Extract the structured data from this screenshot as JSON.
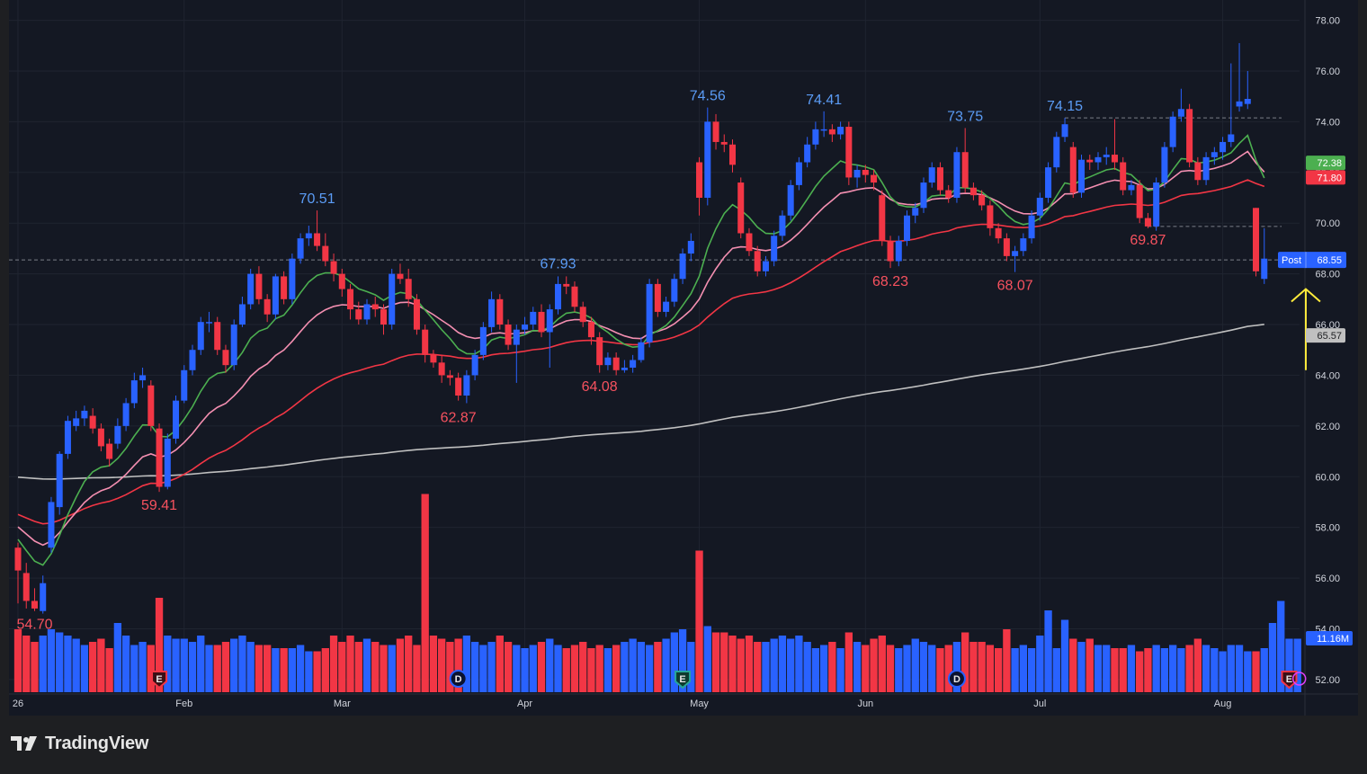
{
  "brand": {
    "name": "TradingView",
    "icon": "tradingview-logo-icon"
  },
  "colors": {
    "background": "#141823",
    "frame": "#1e1f22",
    "up": "#2962ff",
    "down": "#f23645",
    "up_label": "#5b9cf6",
    "down_label": "#f7525f",
    "ema_fast": "#4caf50",
    "ema_mid": "#f48fb1",
    "ema_slow": "#f23645",
    "sma_long": "#c0c0c0",
    "arrow": "#ffeb3b",
    "axis_text": "#d1d4dc"
  },
  "chart_data": {
    "type": "candlestick",
    "ylim": [
      51.5,
      78.8
    ],
    "y_ticks": [
      "78.00",
      "76.00",
      "74.00",
      "72.00",
      "70.00",
      "68.00",
      "66.00",
      "64.00",
      "62.00",
      "60.00",
      "58.00",
      "56.00",
      "54.00",
      "52.00"
    ],
    "x_ticks": [
      {
        "label": "26",
        "index": 0
      },
      {
        "label": "Feb",
        "index": 20
      },
      {
        "label": "Mar",
        "index": 39
      },
      {
        "label": "Apr",
        "index": 61
      },
      {
        "label": "May",
        "index": 82
      },
      {
        "label": "Jun",
        "index": 102
      },
      {
        "label": "Jul",
        "index": 123
      },
      {
        "label": "Aug",
        "index": 145
      }
    ],
    "candles": [
      [
        57.2,
        56.3,
        57.4,
        55.0
      ],
      [
        56.2,
        55.1,
        56.6,
        54.8
      ],
      [
        55.1,
        54.8,
        55.6,
        54.7
      ],
      [
        54.7,
        55.8,
        56.1,
        54.6
      ],
      [
        57.2,
        59.0,
        59.2,
        57.0
      ],
      [
        58.8,
        60.9,
        61.0,
        58.5
      ],
      [
        60.9,
        62.2,
        62.4,
        60.7
      ],
      [
        62.0,
        62.3,
        62.6,
        61.8
      ],
      [
        62.3,
        62.6,
        62.8,
        62.0
      ],
      [
        62.4,
        61.9,
        62.7,
        61.7
      ],
      [
        61.9,
        61.2,
        62.1,
        61.0
      ],
      [
        61.3,
        60.7,
        61.5,
        60.4
      ],
      [
        61.3,
        62.0,
        62.3,
        61.1
      ],
      [
        62.0,
        62.9,
        63.1,
        61.8
      ],
      [
        62.9,
        63.8,
        64.1,
        62.7
      ],
      [
        63.8,
        64.0,
        64.3,
        63.5
      ],
      [
        63.6,
        62.0,
        63.8,
        61.8
      ],
      [
        61.9,
        59.6,
        62.1,
        59.4
      ],
      [
        59.6,
        61.5,
        61.7,
        59.5
      ],
      [
        61.5,
        63.0,
        63.2,
        61.3
      ],
      [
        63.0,
        64.2,
        64.4,
        62.9
      ],
      [
        64.2,
        65.0,
        65.2,
        64.0
      ],
      [
        65.0,
        66.1,
        66.3,
        64.8
      ],
      [
        66.1,
        66.1,
        66.5,
        65.7
      ],
      [
        66.1,
        65.0,
        66.3,
        64.8
      ],
      [
        65.0,
        64.4,
        65.2,
        64.1
      ],
      [
        64.4,
        66.0,
        66.2,
        64.2
      ],
      [
        66.0,
        66.8,
        67.1,
        65.9
      ],
      [
        66.8,
        68.0,
        68.2,
        66.6
      ],
      [
        68.0,
        67.0,
        68.3,
        66.8
      ],
      [
        67.0,
        66.4,
        67.2,
        66.1
      ],
      [
        66.4,
        67.9,
        68.0,
        66.2
      ],
      [
        67.9,
        67.0,
        68.1,
        66.8
      ],
      [
        67.0,
        68.6,
        68.8,
        66.8
      ],
      [
        68.6,
        69.4,
        69.6,
        68.4
      ],
      [
        69.4,
        69.6,
        69.9,
        69.1
      ],
      [
        69.6,
        69.1,
        70.5,
        68.9
      ],
      [
        69.1,
        68.5,
        69.6,
        68.3
      ],
      [
        68.5,
        68.0,
        68.8,
        67.7
      ],
      [
        68.0,
        67.4,
        68.2,
        67.1
      ],
      [
        67.4,
        66.6,
        67.6,
        66.2
      ],
      [
        66.6,
        66.2,
        66.9,
        66.0
      ],
      [
        66.2,
        66.8,
        67.0,
        66.0
      ],
      [
        66.8,
        66.6,
        67.1,
        66.3
      ],
      [
        66.6,
        66.0,
        66.8,
        65.6
      ],
      [
        66.0,
        68.0,
        68.2,
        65.8
      ],
      [
        68.0,
        67.8,
        68.4,
        67.6
      ],
      [
        67.8,
        67.0,
        68.2,
        66.7
      ],
      [
        67.0,
        65.8,
        67.2,
        65.6
      ],
      [
        65.8,
        64.8,
        66.0,
        64.5
      ],
      [
        64.8,
        64.5,
        65.0,
        64.3
      ],
      [
        64.5,
        64.0,
        64.8,
        63.7
      ],
      [
        64.0,
        63.9,
        64.2,
        63.6
      ],
      [
        63.9,
        63.2,
        64.1,
        63.0
      ],
      [
        63.2,
        64.0,
        64.2,
        62.9
      ],
      [
        64.0,
        64.8,
        65.0,
        63.8
      ],
      [
        64.8,
        65.9,
        66.1,
        64.6
      ],
      [
        65.9,
        67.0,
        67.3,
        65.7
      ],
      [
        67.0,
        66.0,
        67.2,
        65.8
      ],
      [
        66.0,
        65.2,
        66.2,
        65.0
      ],
      [
        65.2,
        65.8,
        66.0,
        63.7
      ],
      [
        65.8,
        66.0,
        66.3,
        65.6
      ],
      [
        66.0,
        66.5,
        66.7,
        65.8
      ],
      [
        66.5,
        65.7,
        66.8,
        65.5
      ],
      [
        65.7,
        66.6,
        66.8,
        64.3
      ],
      [
        66.6,
        67.6,
        67.9,
        66.4
      ],
      [
        67.6,
        67.5,
        67.9,
        67.2
      ],
      [
        67.5,
        66.7,
        67.7,
        66.5
      ],
      [
        66.7,
        66.1,
        66.9,
        65.9
      ],
      [
        66.1,
        65.5,
        66.3,
        65.2
      ],
      [
        65.5,
        64.4,
        65.7,
        64.1
      ],
      [
        64.4,
        64.7,
        64.9,
        64.2
      ],
      [
        64.7,
        64.2,
        64.9,
        64.0
      ],
      [
        64.2,
        64.3,
        64.6,
        64.1
      ],
      [
        64.3,
        64.6,
        64.8,
        64.1
      ],
      [
        64.6,
        65.3,
        65.5,
        64.5
      ],
      [
        65.3,
        67.6,
        67.8,
        65.1
      ],
      [
        67.6,
        66.5,
        67.8,
        66.3
      ],
      [
        66.5,
        66.9,
        67.1,
        66.3
      ],
      [
        66.9,
        67.8,
        68.0,
        66.7
      ],
      [
        67.8,
        68.8,
        69.0,
        67.6
      ],
      [
        68.8,
        69.3,
        69.6,
        68.5
      ],
      [
        72.4,
        71.0,
        72.6,
        70.3
      ],
      [
        71.0,
        74.0,
        74.56,
        70.7
      ],
      [
        74.0,
        73.2,
        74.3,
        72.9
      ],
      [
        73.2,
        73.1,
        73.5,
        72.8
      ],
      [
        73.1,
        72.3,
        73.3,
        72.0
      ],
      [
        71.6,
        69.6,
        71.8,
        69.4
      ],
      [
        69.6,
        68.9,
        69.8,
        68.7
      ],
      [
        68.9,
        68.1,
        69.1,
        67.9
      ],
      [
        68.1,
        68.5,
        68.7,
        67.9
      ],
      [
        68.5,
        69.5,
        69.7,
        68.3
      ],
      [
        69.5,
        70.3,
        70.5,
        69.3
      ],
      [
        70.3,
        71.5,
        71.7,
        70.1
      ],
      [
        71.5,
        72.4,
        72.6,
        71.3
      ],
      [
        72.4,
        73.1,
        73.4,
        72.2
      ],
      [
        73.1,
        73.7,
        74.0,
        72.9
      ],
      [
        73.7,
        73.7,
        74.41,
        73.4
      ],
      [
        73.7,
        73.5,
        73.9,
        73.2
      ],
      [
        73.5,
        73.8,
        74.0,
        73.3
      ],
      [
        73.8,
        71.8,
        74.0,
        71.5
      ],
      [
        71.8,
        72.1,
        72.3,
        71.4
      ],
      [
        72.1,
        71.9,
        72.3,
        71.6
      ],
      [
        71.9,
        71.6,
        72.1,
        71.3
      ],
      [
        71.1,
        69.3,
        71.3,
        69.1
      ],
      [
        69.3,
        68.5,
        69.5,
        68.23
      ],
      [
        68.5,
        69.3,
        69.5,
        68.3
      ],
      [
        69.3,
        70.3,
        70.5,
        69.1
      ],
      [
        70.3,
        70.6,
        70.8,
        70.0
      ],
      [
        70.6,
        71.6,
        71.8,
        70.4
      ],
      [
        71.6,
        72.2,
        72.4,
        71.4
      ],
      [
        72.2,
        71.3,
        72.4,
        71.1
      ],
      [
        71.3,
        71.0,
        71.5,
        70.8
      ],
      [
        71.0,
        72.8,
        73.0,
        70.8
      ],
      [
        72.8,
        71.4,
        73.75,
        71.2
      ],
      [
        71.4,
        71.1,
        71.6,
        70.9
      ],
      [
        71.1,
        70.7,
        71.3,
        70.5
      ],
      [
        70.7,
        69.8,
        70.9,
        69.5
      ],
      [
        69.8,
        69.4,
        70.0,
        69.2
      ],
      [
        69.4,
        68.7,
        69.6,
        68.5
      ],
      [
        68.7,
        68.9,
        69.1,
        68.07
      ],
      [
        68.9,
        69.4,
        69.6,
        68.7
      ],
      [
        69.4,
        70.3,
        70.5,
        69.2
      ],
      [
        70.3,
        71.0,
        71.2,
        70.1
      ],
      [
        71.0,
        72.2,
        72.4,
        70.8
      ],
      [
        72.2,
        73.4,
        73.6,
        72.0
      ],
      [
        73.4,
        73.9,
        74.15,
        73.2
      ],
      [
        73.0,
        71.2,
        73.2,
        71.0
      ],
      [
        71.2,
        72.5,
        72.7,
        71.0
      ],
      [
        72.5,
        72.4,
        72.7,
        72.1
      ],
      [
        72.4,
        72.6,
        72.8,
        72.1
      ],
      [
        72.6,
        72.7,
        73.0,
        72.3
      ],
      [
        72.7,
        72.4,
        74.1,
        72.1
      ],
      [
        72.4,
        71.3,
        72.6,
        71.1
      ],
      [
        71.3,
        71.5,
        71.7,
        71.1
      ],
      [
        71.5,
        70.2,
        71.7,
        70.0
      ],
      [
        70.2,
        69.87,
        70.4,
        69.8
      ],
      [
        69.87,
        71.6,
        71.8,
        69.7
      ],
      [
        71.6,
        73.0,
        73.2,
        71.4
      ],
      [
        73.0,
        74.2,
        74.4,
        72.8
      ],
      [
        74.2,
        74.5,
        75.3,
        74.0
      ],
      [
        74.5,
        72.4,
        74.7,
        72.2
      ],
      [
        72.4,
        71.7,
        72.6,
        71.5
      ],
      [
        71.7,
        72.6,
        72.8,
        71.5
      ],
      [
        72.6,
        72.8,
        73.0,
        72.3
      ],
      [
        72.8,
        73.2,
        73.4,
        72.5
      ],
      [
        73.2,
        73.5,
        76.3,
        73.0
      ],
      [
        74.6,
        74.8,
        77.1,
        74.4
      ],
      [
        74.7,
        74.9,
        76.0,
        74.5
      ],
      [
        70.6,
        68.1,
        70.6,
        67.9
      ],
      [
        67.8,
        68.6,
        69.8,
        67.6
      ]
    ],
    "volume_max": 60,
    "volumes": [
      20,
      18,
      16,
      18,
      20,
      19,
      18,
      17,
      15,
      16,
      17,
      14,
      22,
      18,
      15,
      16,
      15,
      30,
      18,
      17,
      17,
      16,
      18,
      15,
      15,
      16,
      17,
      18,
      16,
      15,
      15,
      14,
      14,
      14,
      15,
      13,
      13,
      14,
      18,
      16,
      18,
      16,
      17,
      16,
      15,
      15,
      17,
      18,
      15,
      63,
      18,
      17,
      16,
      17,
      18,
      16,
      15,
      16,
      18,
      16,
      15,
      14,
      15,
      16,
      17,
      15,
      14,
      15,
      16,
      14,
      15,
      14,
      15,
      16,
      17,
      16,
      15,
      16,
      17,
      19,
      20,
      16,
      45,
      21,
      19,
      19,
      18,
      17,
      18,
      16,
      16,
      17,
      18,
      17,
      18,
      16,
      14,
      15,
      16,
      14,
      19,
      16,
      15,
      17,
      18,
      15,
      14,
      15,
      17,
      16,
      15,
      14,
      15,
      16,
      19,
      16,
      16,
      15,
      14,
      20,
      14,
      15,
      14,
      18,
      26,
      14,
      23,
      17,
      16,
      17,
      15,
      15,
      14,
      14,
      15,
      13,
      14,
      15,
      14,
      15,
      14,
      15,
      17,
      15,
      14,
      13,
      15,
      15,
      13,
      13,
      14,
      22,
      29,
      17,
      17
    ],
    "indicators": {
      "ema_fast": {
        "label": "72.38"
      },
      "ema_mid": {
        "label": "71.80"
      },
      "ema_slow": {
        "label": "71.80"
      },
      "sma_long": {
        "label": "65.57"
      }
    },
    "price_labels": [
      {
        "text": "54.70",
        "index": 2,
        "price": 54.7,
        "type": "low"
      },
      {
        "text": "59.41",
        "index": 17,
        "price": 59.41,
        "type": "low"
      },
      {
        "text": "70.51",
        "index": 36,
        "price": 70.51,
        "type": "high"
      },
      {
        "text": "62.87",
        "index": 53,
        "price": 62.87,
        "type": "low"
      },
      {
        "text": "67.93",
        "index": 65,
        "price": 67.93,
        "type": "high"
      },
      {
        "text": "64.08",
        "index": 70,
        "price": 64.08,
        "type": "low"
      },
      {
        "text": "74.56",
        "index": 83,
        "price": 74.56,
        "type": "high"
      },
      {
        "text": "74.41",
        "index": 97,
        "price": 74.41,
        "type": "high"
      },
      {
        "text": "68.23",
        "index": 105,
        "price": 68.23,
        "type": "low"
      },
      {
        "text": "73.75",
        "index": 114,
        "price": 73.75,
        "type": "high"
      },
      {
        "text": "68.07",
        "index": 120,
        "price": 68.07,
        "type": "low"
      },
      {
        "text": "74.15",
        "index": 126,
        "price": 74.15,
        "type": "high"
      },
      {
        "text": "69.87",
        "index": 136,
        "price": 69.87,
        "type": "low"
      }
    ],
    "dashed_levels": [
      {
        "price": 74.15,
        "from_index": 126
      },
      {
        "price": 69.87,
        "from_index": 136
      },
      {
        "price": 68.55,
        "from_index": 0
      }
    ],
    "axis_tags": [
      {
        "text": "72.38",
        "price": 72.38,
        "color": "#4caf50"
      },
      {
        "text": "71.80",
        "price": 71.8,
        "color": "#f23645"
      },
      {
        "text": "65.57",
        "price": 65.57,
        "color": "#c0c0c0"
      }
    ],
    "post_tag": {
      "prefix": "Post",
      "value": "68.55",
      "price": 68.55
    },
    "volume_tag": {
      "text": "11.16M"
    },
    "events": [
      {
        "letter": "E",
        "index": 17,
        "kind": "earnings-past"
      },
      {
        "letter": "D",
        "index": 53,
        "kind": "dividend"
      },
      {
        "letter": "E",
        "index": 80,
        "kind": "earnings-green"
      },
      {
        "letter": "D",
        "index": 113,
        "kind": "dividend"
      },
      {
        "letter": "E",
        "index": 153,
        "kind": "earnings-past"
      }
    ],
    "arrow": {
      "index": 155,
      "from_price": 64.2,
      "to_price": 67.4
    }
  }
}
